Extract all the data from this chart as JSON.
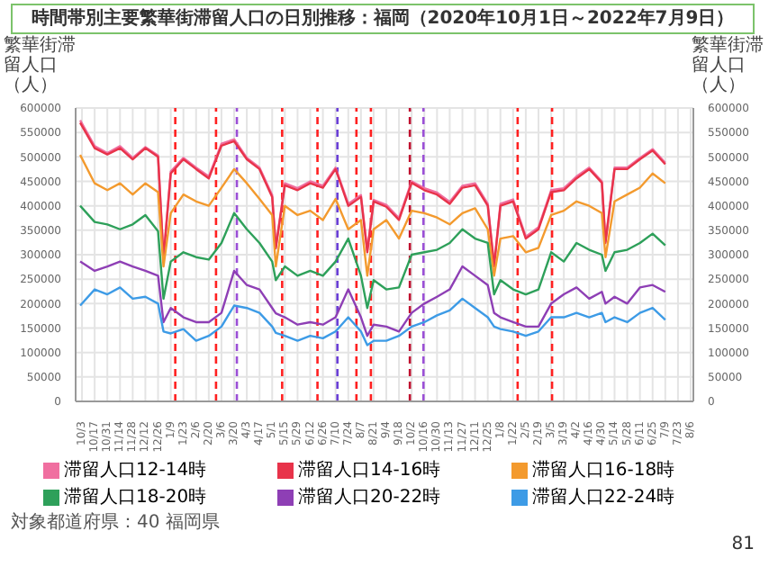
{
  "chart_data": {
    "type": "line",
    "title": "時間帯別主要繁華街滞留人口の日別推移：福岡（2020年10月1日～2022年7月9日）",
    "ylabel": "繁華街滞留人口（人）",
    "y2label": "繁華街滞留人口（人）",
    "x": [
      "2020-10-01",
      "2020-10-17",
      "2020-10-31",
      "2020-11-14",
      "2020-11-28",
      "2020-12-12",
      "2020-12-26",
      "2021-01-01",
      "2021-01-09",
      "2021-01-23",
      "2021-02-06",
      "2021-02-20",
      "2021-03-06",
      "2021-03-20",
      "2021-04-03",
      "2021-04-17",
      "2021-05-01",
      "2021-05-05",
      "2021-05-15",
      "2021-05-29",
      "2021-06-12",
      "2021-06-26",
      "2021-07-10",
      "2021-07-24",
      "2021-08-07",
      "2021-08-14",
      "2021-08-21",
      "2021-09-04",
      "2021-09-18",
      "2021-10-02",
      "2021-10-16",
      "2021-10-30",
      "2021-11-13",
      "2021-11-27",
      "2021-12-11",
      "2021-12-25",
      "2022-01-01",
      "2022-01-08",
      "2022-01-22",
      "2022-02-05",
      "2022-02-19",
      "2022-03-05",
      "2022-03-19",
      "2022-04-02",
      "2022-04-16",
      "2022-04-30",
      "2022-05-04",
      "2022-05-14",
      "2022-05-28",
      "2022-06-11",
      "2022-06-25",
      "2022-07-09"
    ],
    "series": [
      {
        "name": "滞留人口12-14時",
        "color": "#f06fa0",
        "values": [
          575000,
          522000,
          508000,
          522000,
          498000,
          520000,
          503000,
          295000,
          470000,
          498000,
          478000,
          460000,
          527000,
          536000,
          498000,
          478000,
          422000,
          316000,
          446000,
          436000,
          450000,
          441000,
          478000,
          404000,
          422000,
          309000,
          412000,
          402000,
          375000,
          450000,
          436000,
          427000,
          408000,
          441000,
          446000,
          404000,
          280000,
          404000,
          413000,
          337000,
          356000,
          432000,
          436000,
          460000,
          478000,
          450000,
          328000,
          478000,
          478000,
          498000,
          516000,
          488000
        ]
      },
      {
        "name": "滞留人口14-16時",
        "color": "#e8334a",
        "values": [
          570000,
          518000,
          505000,
          518000,
          495000,
          518000,
          500000,
          291000,
          466000,
          495000,
          475000,
          456000,
          523000,
          532000,
          495000,
          475000,
          418000,
          313000,
          442000,
          432000,
          446000,
          437000,
          475000,
          400000,
          418000,
          305000,
          409000,
          398000,
          371000,
          447000,
          432000,
          423000,
          404000,
          437000,
          442000,
          400000,
          276000,
          400000,
          409000,
          333000,
          352000,
          428000,
          432000,
          456000,
          475000,
          447000,
          324000,
          475000,
          475000,
          495000,
          513000,
          485000
        ]
      },
      {
        "name": "滞留人口16-18時",
        "color": "#f39a2e",
        "values": [
          504000,
          446000,
          432000,
          446000,
          423000,
          446000,
          428000,
          276000,
          385000,
          423000,
          409000,
          400000,
          437000,
          475000,
          446000,
          414000,
          381000,
          276000,
          400000,
          381000,
          390000,
          371000,
          414000,
          352000,
          371000,
          257000,
          352000,
          371000,
          333000,
          390000,
          385000,
          376000,
          362000,
          385000,
          395000,
          352000,
          257000,
          333000,
          338000,
          305000,
          314000,
          381000,
          390000,
          409000,
          400000,
          385000,
          295000,
          409000,
          423000,
          437000,
          466000,
          446000
        ]
      },
      {
        "name": "滞留人口18-20時",
        "color": "#2ea05a",
        "values": [
          400000,
          367000,
          362000,
          352000,
          362000,
          381000,
          348000,
          210000,
          286000,
          305000,
          295000,
          290000,
          324000,
          385000,
          352000,
          324000,
          286000,
          248000,
          276000,
          257000,
          267000,
          257000,
          286000,
          333000,
          257000,
          191000,
          248000,
          229000,
          233000,
          300000,
          305000,
          310000,
          324000,
          352000,
          333000,
          324000,
          219000,
          248000,
          229000,
          219000,
          229000,
          305000,
          286000,
          324000,
          310000,
          300000,
          267000,
          305000,
          310000,
          324000,
          343000,
          319000
        ]
      },
      {
        "name": "滞留人口20-22時",
        "color": "#8e3fb5",
        "values": [
          286000,
          267000,
          276000,
          286000,
          276000,
          267000,
          257000,
          162000,
          191000,
          172000,
          162000,
          162000,
          181000,
          267000,
          238000,
          229000,
          191000,
          180000,
          172000,
          157000,
          162000,
          157000,
          172000,
          229000,
          172000,
          134000,
          157000,
          153000,
          143000,
          181000,
          200000,
          214000,
          229000,
          276000,
          257000,
          238000,
          181000,
          172000,
          162000,
          153000,
          153000,
          200000,
          219000,
          233000,
          210000,
          224000,
          200000,
          214000,
          200000,
          233000,
          238000,
          224000
        ]
      },
      {
        "name": "滞留人口22-24時",
        "color": "#3d9be6",
        "values": [
          196000,
          229000,
          219000,
          233000,
          210000,
          214000,
          200000,
          143000,
          139000,
          148000,
          124000,
          134000,
          153000,
          196000,
          191000,
          181000,
          153000,
          140000,
          134000,
          124000,
          134000,
          129000,
          143000,
          172000,
          143000,
          115000,
          124000,
          124000,
          134000,
          153000,
          162000,
          176000,
          186000,
          210000,
          191000,
          172000,
          153000,
          148000,
          143000,
          134000,
          143000,
          172000,
          172000,
          181000,
          172000,
          181000,
          162000,
          172000,
          162000,
          181000,
          191000,
          167000
        ]
      }
    ],
    "xlim": [
      "2020-09-26",
      "2022-08-09"
    ],
    "xticks": [
      {
        "value": "2020-10-03",
        "label": "10/3"
      },
      {
        "value": "2020-10-17",
        "label": "10/17"
      },
      {
        "value": "2020-10-31",
        "label": "10/31"
      },
      {
        "value": "2020-11-14",
        "label": "11/14"
      },
      {
        "value": "2020-11-28",
        "label": "11/28"
      },
      {
        "value": "2020-12-12",
        "label": "12/12"
      },
      {
        "value": "2020-12-26",
        "label": "12/26"
      },
      {
        "value": "2021-01-09",
        "label": "1/9"
      },
      {
        "value": "2021-01-23",
        "label": "1/23"
      },
      {
        "value": "2021-02-06",
        "label": "2/6"
      },
      {
        "value": "2021-02-20",
        "label": "2/20"
      },
      {
        "value": "2021-03-06",
        "label": "3/6"
      },
      {
        "value": "2021-03-20",
        "label": "3/20"
      },
      {
        "value": "2021-04-03",
        "label": "4/3"
      },
      {
        "value": "2021-04-17",
        "label": "4/17"
      },
      {
        "value": "2021-05-01",
        "label": "5/1"
      },
      {
        "value": "2021-05-15",
        "label": "5/15"
      },
      {
        "value": "2021-05-29",
        "label": "5/29"
      },
      {
        "value": "2021-06-12",
        "label": "6/12"
      },
      {
        "value": "2021-06-26",
        "label": "6/26"
      },
      {
        "value": "2021-07-10",
        "label": "7/10"
      },
      {
        "value": "2021-07-24",
        "label": "7/24"
      },
      {
        "value": "2021-08-07",
        "label": "8/7"
      },
      {
        "value": "2021-08-21",
        "label": "8/21"
      },
      {
        "value": "2021-09-04",
        "label": "9/4"
      },
      {
        "value": "2021-09-18",
        "label": "9/18"
      },
      {
        "value": "2021-10-02",
        "label": "10/2"
      },
      {
        "value": "2021-10-16",
        "label": "10/16"
      },
      {
        "value": "2021-10-30",
        "label": "10/30"
      },
      {
        "value": "2021-11-13",
        "label": "11/13"
      },
      {
        "value": "2021-11-27",
        "label": "11/27"
      },
      {
        "value": "2021-12-11",
        "label": "12/11"
      },
      {
        "value": "2021-12-25",
        "label": "12/25"
      },
      {
        "value": "2022-01-08",
        "label": "1/8"
      },
      {
        "value": "2022-01-22",
        "label": "1/22"
      },
      {
        "value": "2022-02-05",
        "label": "2/5"
      },
      {
        "value": "2022-02-19",
        "label": "2/19"
      },
      {
        "value": "2022-03-05",
        "label": "3/5"
      },
      {
        "value": "2022-03-19",
        "label": "3/19"
      },
      {
        "value": "2022-04-02",
        "label": "4/2"
      },
      {
        "value": "2022-04-16",
        "label": "4/16"
      },
      {
        "value": "2022-04-30",
        "label": "4/30"
      },
      {
        "value": "2022-05-14",
        "label": "5/14"
      },
      {
        "value": "2022-05-28",
        "label": "5/28"
      },
      {
        "value": "2022-06-11",
        "label": "6/11"
      },
      {
        "value": "2022-06-25",
        "label": "6/25"
      },
      {
        "value": "2022-07-09",
        "label": "7/9"
      },
      {
        "value": "2022-07-23",
        "label": "7/23"
      },
      {
        "value": "2022-08-06",
        "label": "8/6"
      }
    ],
    "ylim": [
      0,
      600000
    ],
    "yticks": [
      0,
      50000,
      100000,
      150000,
      200000,
      250000,
      300000,
      350000,
      400000,
      450000,
      500000,
      550000,
      600000
    ],
    "y2lim": [
      0,
      600000
    ],
    "y2ticks": [
      0,
      50000,
      100000,
      150000,
      200000,
      250000,
      300000,
      350000,
      400000,
      450000,
      500000,
      550000,
      600000
    ],
    "ref_lines": [
      {
        "axis": "x",
        "value": "2021-01-14",
        "color": "#ff2020",
        "line_style": "dashed"
      },
      {
        "axis": "x",
        "value": "2021-02-28",
        "color": "#ff2020",
        "line_style": "dashed"
      },
      {
        "axis": "x",
        "value": "2021-03-23",
        "color": "#9b4fd6",
        "line_style": "dashed"
      },
      {
        "axis": "x",
        "value": "2021-05-12",
        "color": "#ff2020",
        "line_style": "dashed"
      },
      {
        "axis": "x",
        "value": "2021-06-20",
        "color": "#ff2020",
        "line_style": "dashed"
      },
      {
        "axis": "x",
        "value": "2021-07-12",
        "color": "#6a3fd6",
        "line_style": "dashed"
      },
      {
        "axis": "x",
        "value": "2021-08-02",
        "color": "#ff2020",
        "line_style": "dashed"
      },
      {
        "axis": "x",
        "value": "2021-08-18",
        "color": "#ff2020",
        "line_style": "dashed"
      },
      {
        "axis": "x",
        "value": "2021-09-30",
        "color": "#c01030",
        "line_style": "dashed"
      },
      {
        "axis": "x",
        "value": "2021-10-15",
        "color": "#9b4fd6",
        "line_style": "dashed"
      },
      {
        "axis": "x",
        "value": "2022-01-27",
        "color": "#ff2020",
        "line_style": "dashed"
      },
      {
        "axis": "x",
        "value": "2022-03-06",
        "color": "#ff2020",
        "line_style": "dashed"
      }
    ],
    "annotations": [
      "対象都道府県：40 福岡県",
      "81"
    ],
    "grid": true,
    "legend": "bottom",
    "marker": "none",
    "line_style": "solid"
  }
}
